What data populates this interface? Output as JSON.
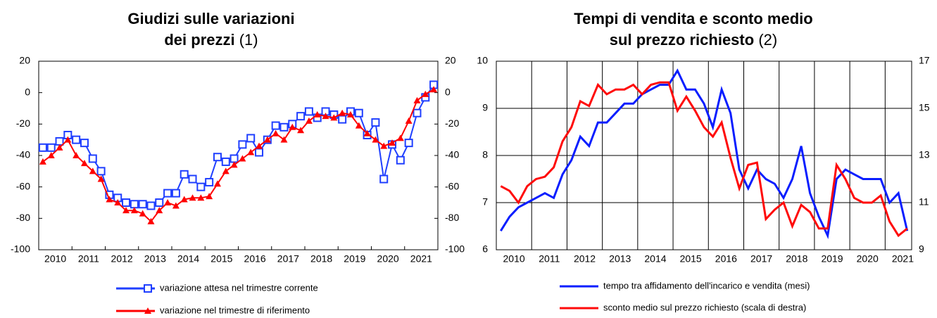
{
  "chart_data": [
    {
      "type": "line",
      "title": [
        "Giudizi sulle variazioni",
        "dei prezzi"
      ],
      "title_note": "(1)",
      "categories": [
        "2010",
        null,
        null,
        null,
        "2011",
        null,
        null,
        null,
        "2012",
        null,
        null,
        null,
        "2013",
        null,
        null,
        null,
        "2014",
        null,
        null,
        null,
        "2015",
        null,
        null,
        null,
        "2016",
        null,
        null,
        null,
        "2017",
        null,
        null,
        null,
        "2018",
        null,
        null,
        null,
        "2019",
        null,
        null,
        null,
        "2020",
        null,
        null,
        null,
        "2021",
        null,
        null,
        null
      ],
      "series": [
        {
          "name": "variazione attesa nel trimestre corrente",
          "color": "#1f3fff",
          "marker": "square",
          "values": [
            -35,
            -35,
            -31,
            -27,
            -30,
            -32,
            -42,
            -50,
            -65,
            -67,
            -70,
            -71,
            -71,
            -72,
            -70,
            -64,
            -64,
            -52,
            -55,
            -60,
            -57,
            -41,
            -44,
            -42,
            -33,
            -29,
            -38,
            -30,
            -21,
            -22,
            -20,
            -15,
            -12,
            -16,
            -12,
            -14,
            -17,
            -12,
            -13,
            -27,
            -19,
            -55,
            -33,
            -43,
            -32,
            -13,
            -3,
            5
          ]
        },
        {
          "name": "variazione nel trimestre di riferimento",
          "color": "#ff0000",
          "marker": "triangle",
          "values": [
            -44,
            -40,
            -35,
            -30,
            -40,
            -45,
            -50,
            -55,
            -68,
            -70,
            -75,
            -75,
            -77,
            -82,
            -75,
            -70,
            -72,
            -68,
            -67,
            -67,
            -66,
            -58,
            -50,
            -46,
            -42,
            -38,
            -34,
            -30,
            -26,
            -30,
            -22,
            -24,
            -18,
            -14,
            -15,
            -16,
            -13,
            -14,
            -21,
            -26,
            -30,
            -34,
            -32,
            -29,
            -18,
            -5,
            -1,
            2
          ]
        }
      ],
      "ylim": [
        -100,
        20
      ],
      "yticks": [
        -100,
        -80,
        -60,
        -40,
        -20,
        0,
        20
      ],
      "y2lim": [
        -100,
        20
      ],
      "y2ticks": [
        -100,
        -80,
        -60,
        -40,
        -20,
        0,
        20
      ],
      "grid": false
    },
    {
      "type": "line",
      "title": [
        "Tempi di vendita e sconto medio",
        "sul prezzo richiesto"
      ],
      "title_note": "(2)",
      "categories": [
        "2010",
        null,
        null,
        null,
        "2011",
        null,
        null,
        null,
        "2012",
        null,
        null,
        null,
        "2013",
        null,
        null,
        null,
        "2014",
        null,
        null,
        null,
        "2015",
        null,
        null,
        null,
        "2016",
        null,
        null,
        null,
        "2017",
        null,
        null,
        null,
        "2018",
        null,
        null,
        null,
        "2019",
        null,
        null,
        null,
        "2020",
        null,
        null,
        null,
        "2021",
        null,
        null
      ],
      "series": [
        {
          "name": "tempo tra affidamento dell'incarico e vendita (mesi)",
          "color": "#0a1eff",
          "marker": "none",
          "values": [
            6.4,
            6.7,
            6.9,
            7.0,
            7.1,
            7.2,
            7.1,
            7.6,
            7.9,
            8.4,
            8.2,
            8.7,
            8.7,
            8.9,
            9.1,
            9.1,
            9.3,
            9.4,
            9.5,
            9.5,
            9.8,
            9.4,
            9.4,
            9.1,
            8.6,
            9.4,
            8.9,
            7.7,
            7.3,
            7.7,
            7.5,
            7.4,
            7.1,
            7.5,
            8.2,
            7.2,
            6.7,
            6.3,
            7.5,
            7.7,
            7.6,
            7.5,
            7.5,
            7.5,
            7.0,
            7.2,
            6.4
          ]
        },
        {
          "name": "sconto medio sul prezzo richiesto (scala di destra)",
          "color": "#ff0a0a",
          "marker": "none",
          "axis": "y2",
          "values": [
            11.7,
            11.5,
            11.0,
            11.7,
            12.0,
            12.1,
            12.5,
            13.6,
            14.2,
            15.3,
            15.1,
            16.0,
            15.6,
            15.8,
            15.8,
            16.0,
            15.6,
            16.0,
            16.1,
            16.1,
            14.9,
            15.5,
            14.9,
            14.2,
            13.8,
            14.4,
            12.9,
            11.6,
            12.6,
            12.7,
            10.3,
            10.7,
            11.0,
            10.0,
            10.9,
            10.6,
            9.9,
            9.9,
            12.6,
            12.0,
            11.2,
            11.0,
            11.0,
            11.3,
            10.2,
            9.6,
            9.9
          ]
        }
      ],
      "ylim": [
        6,
        10
      ],
      "yticks": [
        6,
        7,
        8,
        9,
        10
      ],
      "y2lim": [
        9,
        17
      ],
      "y2ticks": [
        9,
        11,
        13,
        15,
        17
      ],
      "grid": true
    }
  ]
}
